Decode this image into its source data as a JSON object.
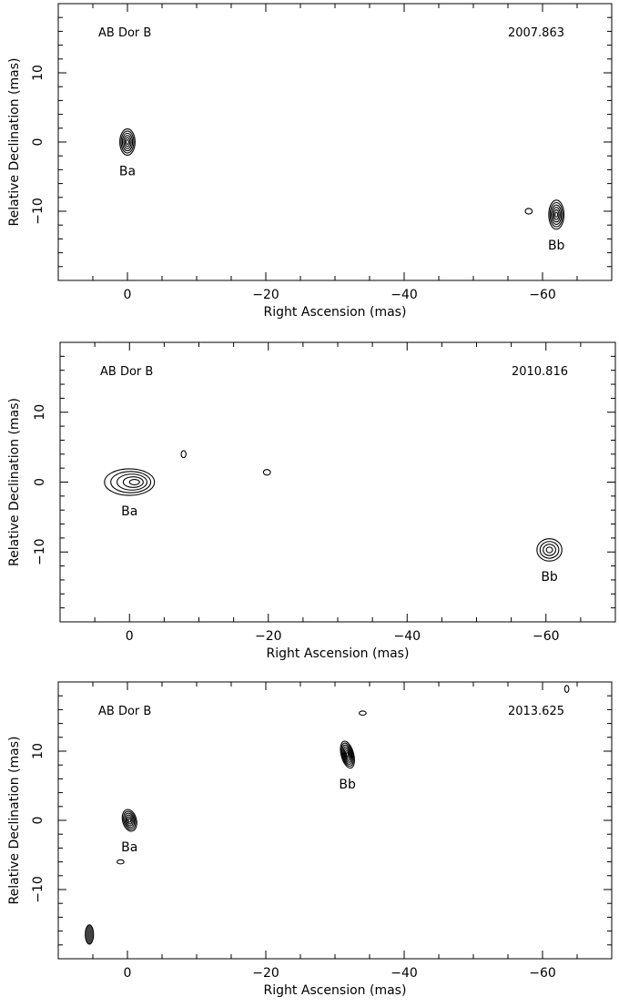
{
  "chart_data": [
    {
      "type": "contour",
      "source_label": "AB Dor B",
      "epoch": "2007.863",
      "xlabel": "Right Ascension  (mas)",
      "ylabel": "Relative Declination  (mas)",
      "xlim": [
        10,
        -70
      ],
      "ylim": [
        -20,
        20
      ],
      "x_ticks": [
        0,
        -20,
        -40,
        -60
      ],
      "y_ticks": [
        -10,
        0,
        10
      ],
      "components": [
        {
          "label": "Ba",
          "x": 0,
          "y": 0,
          "shape": "narrow-ellipse",
          "rx": 1.1,
          "ry": 1.9,
          "levels": 6
        },
        {
          "label": "Bb",
          "x": -62,
          "y": -10.5,
          "shape": "narrow-ellipse",
          "rx": 1.1,
          "ry": 2.1,
          "levels": 6
        }
      ],
      "artifacts": [
        {
          "x": -58,
          "y": -10,
          "rx": 0.5,
          "ry": 0.4
        }
      ]
    },
    {
      "type": "contour",
      "source_label": "AB Dor B",
      "epoch": "2010.816",
      "xlabel": "Right Ascension  (mas)",
      "ylabel": "Relative Declination  (mas)",
      "xlim": [
        10,
        -70
      ],
      "ylim": [
        -20,
        20
      ],
      "x_ticks": [
        0,
        -20,
        -40,
        -60
      ],
      "y_ticks": [
        -10,
        0,
        10
      ],
      "components": [
        {
          "label": "Ba",
          "x": 0,
          "y": 0,
          "shape": "extended",
          "rx": 3.6,
          "ry": 1.9,
          "levels": 5
        },
        {
          "label": "Bb",
          "x": -60.5,
          "y": -9.7,
          "shape": "round",
          "rx": 1.8,
          "ry": 1.6,
          "levels": 4
        }
      ],
      "artifacts": [
        {
          "x": -7.8,
          "y": 4,
          "rx": 0.35,
          "ry": 0.5
        },
        {
          "x": -19.8,
          "y": 1.4,
          "rx": 0.5,
          "ry": 0.4
        }
      ]
    },
    {
      "type": "contour",
      "source_label": "AB Dor B",
      "epoch": "2013.625",
      "xlabel": "Right Ascension  (mas)",
      "ylabel": "Relative Declination  (mas)",
      "xlim": [
        10,
        -70
      ],
      "ylim": [
        -20,
        20
      ],
      "x_ticks": [
        0,
        -20,
        -40,
        -60
      ],
      "y_ticks": [
        -10,
        0,
        10
      ],
      "components": [
        {
          "label": "Ba",
          "x": -0.3,
          "y": 0,
          "shape": "tilted-ellipse",
          "rx": 1.0,
          "ry": 1.6,
          "levels": 6
        },
        {
          "label": "Bb",
          "x": -31.8,
          "y": 9.5,
          "shape": "tilted-ellipse",
          "rx": 0.9,
          "ry": 2.0,
          "levels": 7
        }
      ],
      "artifacts": [
        {
          "x": -34,
          "y": 15.5,
          "rx": 0.5,
          "ry": 0.3
        },
        {
          "x": 1,
          "y": -6,
          "rx": 0.5,
          "ry": 0.3
        },
        {
          "x": -63.5,
          "y": 19,
          "rx": 0.3,
          "ry": 0.5
        }
      ],
      "beam": {
        "x": 5.5,
        "y": -16.5,
        "rx": 0.6,
        "ry": 1.4
      }
    }
  ]
}
